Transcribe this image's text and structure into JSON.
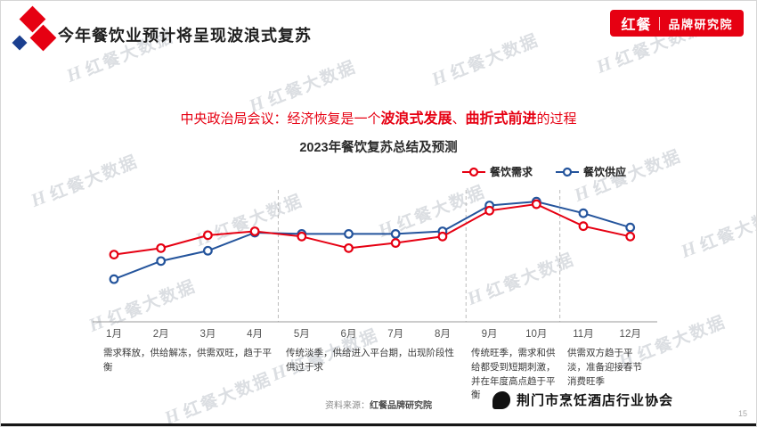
{
  "header": {
    "title": "今年餐饮业预计将呈现波浪式复苏",
    "badge": {
      "brand": "红餐",
      "unit": "品牌研究院"
    }
  },
  "subtitle": {
    "prefix": "中央政治局会议：经济恢复是一个",
    "bold1": "波浪式发展",
    "sep": "、",
    "bold2": "曲折式前进",
    "suffix": "的过程"
  },
  "chart_data": {
    "type": "line",
    "title": "2023年餐饮复苏总结及预测",
    "categories": [
      "1月",
      "2月",
      "3月",
      "4月",
      "5月",
      "6月",
      "7月",
      "8月",
      "9月",
      "10月",
      "11月",
      "12月"
    ],
    "series": [
      {
        "name": "餐饮需求",
        "color": "#e60012",
        "values": [
          52,
          57,
          67,
          70,
          66,
          57,
          61,
          66,
          86,
          91,
          74,
          66
        ]
      },
      {
        "name": "餐饮供应",
        "color": "#24549c",
        "values": [
          33,
          47,
          55,
          69,
          68,
          68,
          68,
          70,
          90,
          93,
          84,
          73
        ]
      }
    ],
    "ylim": [
      0,
      100
    ],
    "grid": false,
    "legend_position": "top-right",
    "dividers_after_index": [
      3,
      7,
      9
    ],
    "annotations": [
      "需求释放，供给解冻，供需双旺，趋于平衡",
      "传统淡季，供给进入平台期，出现阶段性供过于求",
      "传统旺季，需求和供给都受到短期刺激，并在年度高点趋于平衡",
      "供需双方趋于平淡，准备迎接春节消费旺季"
    ]
  },
  "footer": {
    "source_label": "资料来源：",
    "source_value": "红餐品牌研究院",
    "association": "荆门市烹饪酒店行业协会",
    "page_number": "15"
  },
  "watermark": {
    "glyph": "H",
    "text": "红餐大数据"
  }
}
